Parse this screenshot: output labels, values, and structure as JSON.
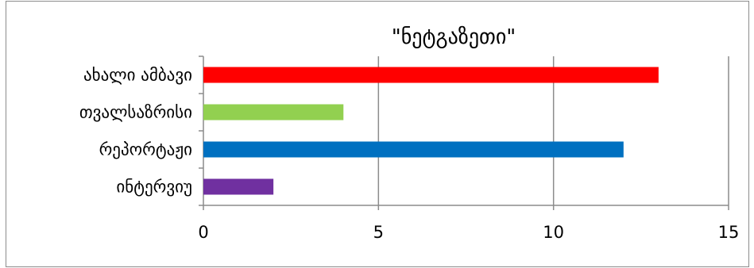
{
  "chart_data": {
    "type": "bar",
    "orientation": "horizontal",
    "title": "\"ნეტგაზეთი\"",
    "categories": [
      "ახალი ამბავი",
      "თვალსაზრისი",
      "რეპორტაჟი",
      "ინტერვიუ"
    ],
    "values": [
      13,
      4,
      12,
      2
    ],
    "colors": [
      "#ff0000",
      "#92d050",
      "#0070c0",
      "#7030a0"
    ],
    "xlim": [
      0,
      15
    ],
    "xticks": [
      "0",
      "5",
      "10",
      "15"
    ],
    "grid": true,
    "legend": "none"
  }
}
